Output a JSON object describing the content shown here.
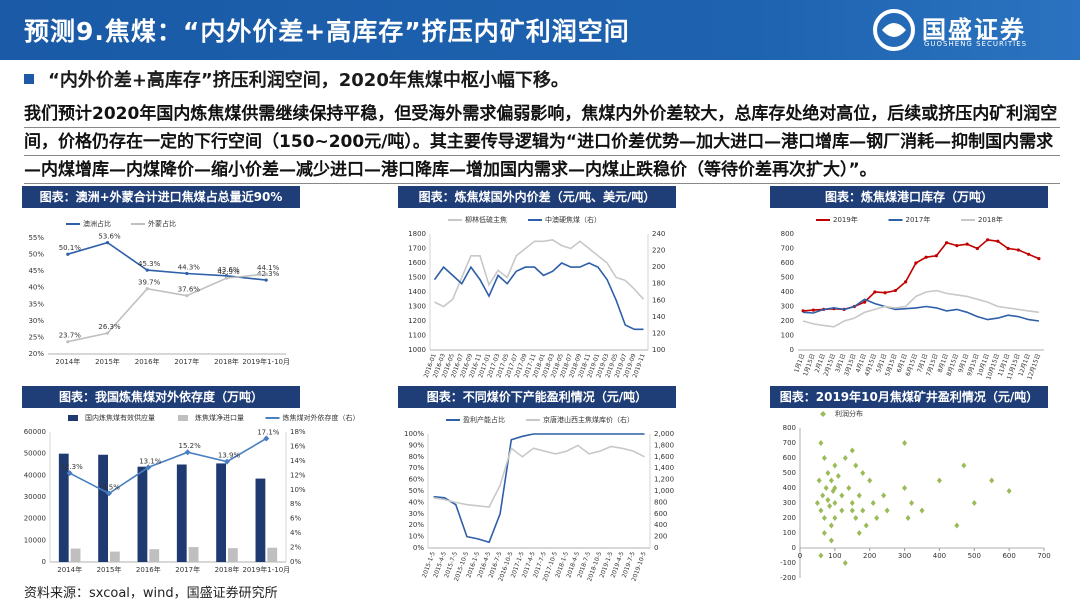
{
  "header": {
    "title": "预测9.焦煤：“内外价差+高库存”挤压内矿利润空间",
    "logo": "国盛证券",
    "logo_sub": "GUOSHENG SECURITIES"
  },
  "subheading": "“内外价差+高库存”挤压利润空间，2020年焦煤中枢小幅下移。",
  "paragraph": "我们预计2020年国内炼焦煤供需继续保持平稳，但受海外需求偏弱影响，焦煤内外价差较大，总库存处绝对高位，后续或挤压内矿利润空间，价格仍存在一定的下行空间（150~200元/吨）。其主要传导逻辑为“进口价差优势—加大进口—港口增库—钢厂消耗—抑制国内需求—内煤增库—内煤降价—缩小价差—减少进口—港口降库—增加国内需求—内煤止跌稳价（等待价差再次扩大）”。",
  "source": "资料来源：sxcoal，wind，国盛证券研究所",
  "chart_data": [
    {
      "type": "line",
      "title": "图表：澳洲+外蒙合计进口焦煤占总量近90%",
      "categories": [
        "2014年",
        "2015年",
        "2016年",
        "2017年",
        "2018年",
        "2019年1-10月"
      ],
      "series": [
        {
          "name": "澳洲占比",
          "color": "#2e5fa8",
          "marker": "circle",
          "values": [
            50.1,
            53.6,
            45.3,
            44.3,
            43.6,
            42.3
          ],
          "value_labels": [
            "50.1%",
            "53.6%",
            "45.3%",
            "44.3%",
            "43.6%",
            "42.3%"
          ]
        },
        {
          "name": "外蒙占比",
          "color": "#c0c0c0",
          "marker": "circle",
          "values": [
            23.7,
            26.3,
            39.7,
            37.6,
            42.9,
            44.1
          ],
          "value_labels": [
            "23.7%",
            "26.3%",
            "39.7%",
            "37.6%",
            "42.9%",
            "44.1%"
          ]
        }
      ],
      "ylim": [
        20,
        55
      ],
      "yticks": [
        {
          "value": 20,
          "label": "20%"
        },
        {
          "value": 25,
          "label": "25%"
        },
        {
          "value": 30,
          "label": "30%"
        },
        {
          "value": 35,
          "label": "35%"
        },
        {
          "value": 40,
          "label": "40%"
        },
        {
          "value": 45,
          "label": "45%"
        },
        {
          "value": 50,
          "label": "50%"
        },
        {
          "value": 55,
          "label": "55%"
        }
      ],
      "grid": false
    },
    {
      "type": "line",
      "title": "图表：炼焦煤国外内价差（元/吨、美元/吨）",
      "categories": [
        "2016-01",
        "2016-03",
        "2016-05",
        "2016-07",
        "2016-09",
        "2016-11",
        "2017-01",
        "2017-03",
        "2017-05",
        "2017-07",
        "2017-09",
        "2017-11",
        "2018-01",
        "2018-03",
        "2018-05",
        "2018-07",
        "2018-09",
        "2018-11",
        "2019-01",
        "2019-03",
        "2019-05",
        "2019-07",
        "2019-09",
        "2019-11"
      ],
      "series": [
        {
          "name": "柳林低硫主焦",
          "color": "#c8c8c8",
          "values": [
            1330,
            1300,
            1350,
            1500,
            1650,
            1650,
            1450,
            1550,
            1500,
            1650,
            1700,
            1750,
            1750,
            1760,
            1720,
            1700,
            1750,
            1700,
            1650,
            1600,
            1500,
            1480,
            1420,
            1350
          ]
        },
        {
          "name": "中澳硬焦煤（右）",
          "color": "#2e5fa8",
          "axis": "y2",
          "values": [
            185,
            200,
            190,
            180,
            200,
            185,
            165,
            190,
            180,
            195,
            200,
            200,
            190,
            195,
            205,
            200,
            200,
            205,
            200,
            185,
            160,
            130,
            125,
            125
          ]
        }
      ],
      "ylim": [
        1000,
        1800
      ],
      "yticks": [
        1000,
        1100,
        1200,
        1300,
        1400,
        1500,
        1600,
        1700,
        1800
      ],
      "y2lim": [
        100,
        240
      ],
      "y2ticks": [
        100,
        120,
        140,
        160,
        180,
        200,
        220,
        240
      ],
      "grid": false
    },
    {
      "type": "line",
      "title": "图表：炼焦煤港口库存（万吨）",
      "categories": [
        "1月1日",
        "1月15日",
        "2月1日",
        "2月15日",
        "3月1日",
        "3月15日",
        "4月1日",
        "4月15日",
        "5月1日",
        "5月15日",
        "6月1日",
        "6月15日",
        "7月1日",
        "7月15日",
        "8月1日",
        "8月15日",
        "9月1日",
        "9月15日",
        "10月1日",
        "10月15日",
        "11月1日",
        "11月15日",
        "12月1日",
        "12月15日"
      ],
      "series": [
        {
          "name": "2019年",
          "color": "#c00000",
          "marker": "circle",
          "values": [
            270,
            275,
            280,
            285,
            280,
            300,
            330,
            400,
            395,
            410,
            470,
            600,
            640,
            650,
            740,
            720,
            730,
            700,
            760,
            750,
            700,
            690,
            660,
            630
          ]
        },
        {
          "name": "2017年",
          "color": "#2e5fa8",
          "values": [
            260,
            255,
            280,
            290,
            280,
            300,
            350,
            320,
            300,
            280,
            285,
            290,
            300,
            290,
            270,
            280,
            260,
            230,
            210,
            220,
            240,
            230,
            210,
            200
          ]
        },
        {
          "name": "2018年",
          "color": "#c8c8c8",
          "values": [
            200,
            180,
            170,
            160,
            200,
            220,
            260,
            280,
            300,
            290,
            300,
            370,
            400,
            410,
            390,
            380,
            370,
            350,
            330,
            300,
            290,
            280,
            270,
            260
          ]
        }
      ],
      "ylim": [
        0,
        800
      ],
      "yticks": [
        0,
        100,
        200,
        300,
        400,
        500,
        600,
        700,
        800
      ],
      "grid": false
    },
    {
      "type": "bar",
      "title": "图表：我国炼焦煤对外依存度（万吨）",
      "categories": [
        "2014年",
        "2015年",
        "2016年",
        "2017年",
        "2018年",
        "2019年1-10月"
      ],
      "series": [
        {
          "name": "国内炼焦煤有效供应量",
          "color": "#1f3a70",
          "values": [
            50000,
            49500,
            44000,
            45000,
            45500,
            38500
          ]
        },
        {
          "name": "炼焦煤净进口量",
          "color": "#bfbfbf",
          "values": [
            6200,
            4800,
            5900,
            6900,
            6400,
            6600
          ]
        },
        {
          "name": "炼焦煤对外依存度（右）",
          "color": "#4a7fc1",
          "type": "line",
          "marker": "diamond",
          "axis": "y2",
          "values": [
            12.3,
            9.5,
            13.1,
            15.2,
            13.9,
            17.1
          ],
          "value_labels": [
            "12.3%",
            "9.5%",
            "13.1%",
            "15.2%",
            "13.9%",
            "17.1%"
          ]
        }
      ],
      "ylim": [
        0,
        60000
      ],
      "yticks": [
        0,
        10000,
        20000,
        30000,
        40000,
        50000,
        60000
      ],
      "y2lim": [
        0,
        18
      ],
      "y2ticks": [
        {
          "value": 0,
          "label": "0%"
        },
        {
          "value": 2,
          "label": "2%"
        },
        {
          "value": 4,
          "label": "4%"
        },
        {
          "value": 6,
          "label": "6%"
        },
        {
          "value": 8,
          "label": "8%"
        },
        {
          "value": 10,
          "label": "10%"
        },
        {
          "value": 12,
          "label": "12%"
        },
        {
          "value": 14,
          "label": "14%"
        },
        {
          "value": 16,
          "label": "16%"
        },
        {
          "value": 18,
          "label": "18%"
        }
      ],
      "grid": false
    },
    {
      "type": "line",
      "title": "图表：不同煤价下产能盈利情况（元/吨）",
      "categories": [
        "2015-1-5",
        "2015-4-5",
        "2015-7-5",
        "2015-10-5",
        "2016-1-5",
        "2016-4-5",
        "2016-7-5",
        "2016-10-5",
        "2017-1-5",
        "2017-4-5",
        "2017-7-5",
        "2017-10-5",
        "2018-1-5",
        "2018-4-5",
        "2018-7-5",
        "2018-10-5",
        "2019-1-5",
        "2019-4-5",
        "2019-7-5",
        "2019-10-5"
      ],
      "series": [
        {
          "name": "盈利产能占比",
          "color": "#2e5fa8",
          "values": [
            45,
            44,
            38,
            10,
            8,
            5,
            30,
            95,
            98,
            100,
            100,
            100,
            100,
            100,
            100,
            100,
            100,
            100,
            100,
            100
          ]
        },
        {
          "name": "京唐港山西主焦煤库价（右）",
          "color": "#c8c8c8",
          "axis": "y2",
          "values": [
            880,
            850,
            800,
            760,
            740,
            720,
            1100,
            1750,
            1600,
            1750,
            1700,
            1650,
            1700,
            1800,
            1650,
            1700,
            1780,
            1750,
            1700,
            1600
          ]
        }
      ],
      "ylim": [
        0,
        100
      ],
      "yticks": [
        {
          "value": 0,
          "label": "0%"
        },
        {
          "value": 10,
          "label": "10%"
        },
        {
          "value": 20,
          "label": "20%"
        },
        {
          "value": 30,
          "label": "30%"
        },
        {
          "value": 40,
          "label": "40%"
        },
        {
          "value": 50,
          "label": "50%"
        },
        {
          "value": 60,
          "label": "60%"
        },
        {
          "value": 70,
          "label": "70%"
        },
        {
          "value": 80,
          "label": "80%"
        },
        {
          "value": 90,
          "label": "90%"
        },
        {
          "value": 100,
          "label": "100%"
        }
      ],
      "y2lim": [
        0,
        2000
      ],
      "y2ticks": [
        0,
        200,
        400,
        600,
        800,
        {
          "value": 1000,
          "label": "1,000"
        },
        {
          "value": 1200,
          "label": "1,200"
        },
        {
          "value": 1400,
          "label": "1,400"
        },
        {
          "value": 1600,
          "label": "1,600"
        },
        {
          "value": 1800,
          "label": "1,800"
        },
        {
          "value": 2000,
          "label": "2,000"
        }
      ],
      "grid": false
    },
    {
      "type": "scatter",
      "title": "图表：2019年10月焦煤矿井盈利情况（元/吨）",
      "x": [
        50,
        55,
        60,
        60,
        65,
        70,
        70,
        75,
        80,
        80,
        85,
        90,
        90,
        95,
        100,
        100,
        100,
        110,
        120,
        120,
        130,
        140,
        150,
        150,
        160,
        160,
        170,
        180,
        180,
        190,
        200,
        210,
        220,
        240,
        250,
        300,
        300,
        310,
        320,
        350,
        400,
        450,
        470,
        500,
        550,
        600,
        60,
        70,
        90,
        100,
        130,
        150,
        170
      ],
      "series": [
        {
          "name": "利润分布",
          "color": "#9bbb59",
          "values": [
            300,
            450,
            250,
            700,
            350,
            200,
            600,
            400,
            500,
            320,
            280,
            450,
            150,
            380,
            550,
            300,
            200,
            480,
            350,
            250,
            600,
            400,
            650,
            300,
            550,
            200,
            350,
            500,
            250,
            150,
            450,
            300,
            200,
            350,
            250,
            700,
            400,
            200,
            300,
            250,
            450,
            150,
            550,
            300,
            450,
            380,
            -50,
            100,
            50,
            400,
            -100,
            250,
            100
          ]
        }
      ],
      "xlim": [
        0,
        700
      ],
      "xticks": [
        0,
        100,
        200,
        300,
        400,
        500,
        600,
        700
      ],
      "ylim": [
        -200,
        800
      ],
      "yticks": [
        -200,
        -100,
        0,
        100,
        200,
        300,
        400,
        500,
        600,
        700,
        800
      ],
      "grid": false
    }
  ]
}
